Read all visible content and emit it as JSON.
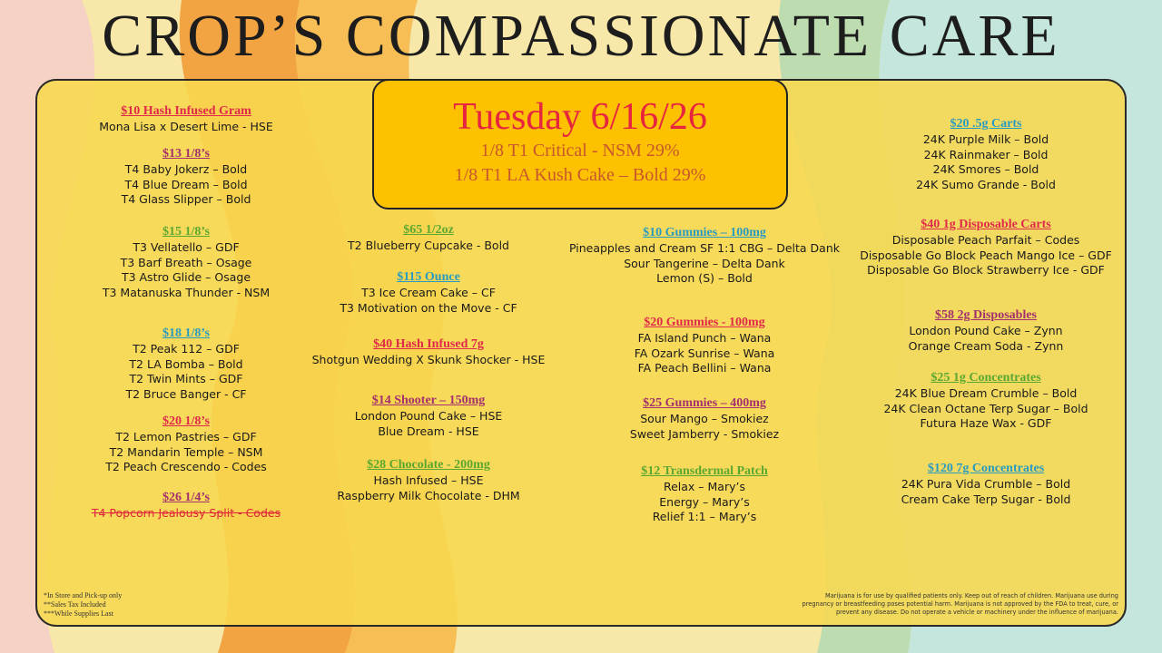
{
  "title": "CROP’S COMPASSIONATE CARE",
  "header": {
    "date": "Tuesday 6/16/26",
    "specials": [
      "1/8 T1 Critical - NSM 29%",
      "1/8 T1 LA Kush Cake – Bold 29%"
    ]
  },
  "columns": [
    {
      "sections": [
        {
          "heading": "$10 Hash Infused Gram",
          "color": "#e0284a",
          "items": [
            "Mona Lisa x Desert Lime - HSE"
          ]
        },
        {
          "heading": "$13 1/8’s",
          "color": "#a3306c",
          "items": [
            "T4 Baby Jokerz – Bold",
            "T4 Blue Dream – Bold",
            "T4 Glass Slipper – Bold"
          ]
        },
        {
          "heading": "$15 1/8’s",
          "color": "#5aa830",
          "items": [
            "T3 Vellatello – GDF",
            "T3 Barf Breath – Osage",
            "T3 Astro Glide – Osage",
            "T3 Matanuska Thunder - NSM"
          ]
        },
        {
          "heading": "$18 1/8’s",
          "color": "#2a9bc0",
          "items": [
            "T2 Peak 112 – GDF",
            "T2 LA Bomba – Bold",
            "T2 Twin Mints – GDF",
            "T2 Bruce Banger - CF"
          ]
        },
        {
          "heading": "$20 1/8’s",
          "color": "#e0284a",
          "items": [
            "T2 Lemon Pastries – GDF",
            "T2 Mandarin Temple – NSM",
            "T2 Peach Crescendo - Codes"
          ]
        },
        {
          "heading": "$26 1/4’s",
          "color": "#a3306c",
          "items": [
            "T4 Popcorn Jealousy Split - Codes"
          ],
          "struck_out": true
        }
      ]
    },
    {
      "sections": [
        {
          "heading": "$65 1/2oz",
          "color": "#5aa830",
          "items": [
            "T2 Blueberry Cupcake - Bold"
          ]
        },
        {
          "heading": "$115 Ounce",
          "color": "#2a9bc0",
          "items": [
            "T3 Ice Cream Cake – CF",
            "T3 Motivation on the Move - CF"
          ]
        },
        {
          "heading": "$40 Hash Infused 7g",
          "color": "#e0284a",
          "items": [
            "Shotgun Wedding X Skunk Shocker - HSE"
          ]
        },
        {
          "heading": "$14 Shooter – 150mg",
          "color": "#a3306c",
          "items": [
            "London Pound Cake – HSE",
            "Blue Dream - HSE"
          ]
        },
        {
          "heading": "$28 Chocolate - 200mg",
          "color": "#5aa830",
          "items": [
            "Hash Infused – HSE",
            "Raspberry Milk Chocolate - DHM"
          ]
        }
      ]
    },
    {
      "sections": [
        {
          "heading": "$10 Gummies – 100mg",
          "color": "#2a9bc0",
          "items": [
            "Pineapples and Cream SF 1:1 CBG – Delta Dank",
            "Sour Tangerine – Delta Dank",
            "Lemon (S) – Bold"
          ]
        },
        {
          "heading": "$20 Gummies - 100mg",
          "color": "#e0284a",
          "items": [
            "FA Island Punch – Wana",
            "FA Ozark Sunrise – Wana",
            "FA Peach Bellini – Wana"
          ]
        },
        {
          "heading": "$25 Gummies – 400mg",
          "color": "#a3306c",
          "items": [
            "Sour Mango – Smokiez",
            "Sweet Jamberry - Smokiez"
          ]
        },
        {
          "heading": "$12 Transdermal Patch",
          "color": "#5aa830",
          "items": [
            "Relax – Mary’s",
            "Energy – Mary’s",
            "Relief 1:1 – Mary’s"
          ]
        }
      ]
    },
    {
      "sections": [
        {
          "heading": "$20 .5g Carts",
          "color": "#2a9bc0",
          "items": [
            "24K Purple Milk – Bold",
            "24K Rainmaker – Bold",
            "24K Smores – Bold",
            "24K Sumo Grande - Bold"
          ]
        },
        {
          "heading": "$40 1g Disposable Carts",
          "color": "#e0284a",
          "items": [
            "Disposable Peach Parfait – Codes",
            "Disposable Go Block Peach Mango Ice – GDF",
            "Disposable Go Block Strawberry Ice - GDF"
          ]
        },
        {
          "heading": "$58 2g Disposables",
          "color": "#a3306c",
          "items": [
            "London Pound Cake – Zynn",
            "Orange Cream Soda - Zynn"
          ]
        },
        {
          "heading": "$25 1g Concentrates",
          "color": "#5aa830",
          "items": [
            "24K Blue Dream Crumble – Bold",
            "24K Clean Octane Terp Sugar – Bold",
            "Futura Haze Wax - GDF"
          ]
        },
        {
          "heading": "$120 7g Concentrates",
          "color": "#2a9bc0",
          "items": [
            "24K Pura Vida Crumble – Bold",
            "Cream Cake Terp Sugar - Bold"
          ]
        }
      ]
    }
  ],
  "footer": {
    "notes": [
      "*In Store and Pick-up only",
      "**Sales Tax Included",
      "***While Supplies Last"
    ],
    "disclaimer": [
      "Marijuana is for use by qualified patients only. Keep out of reach of children. Marijuana use during",
      "pregnancy or breastfeeding poses potential harm. Marijuana is not approved by the FDA to treat, cure, or",
      "prevent any disease. Do not operate a vehicle or machinery under the influence of marijuana."
    ]
  }
}
